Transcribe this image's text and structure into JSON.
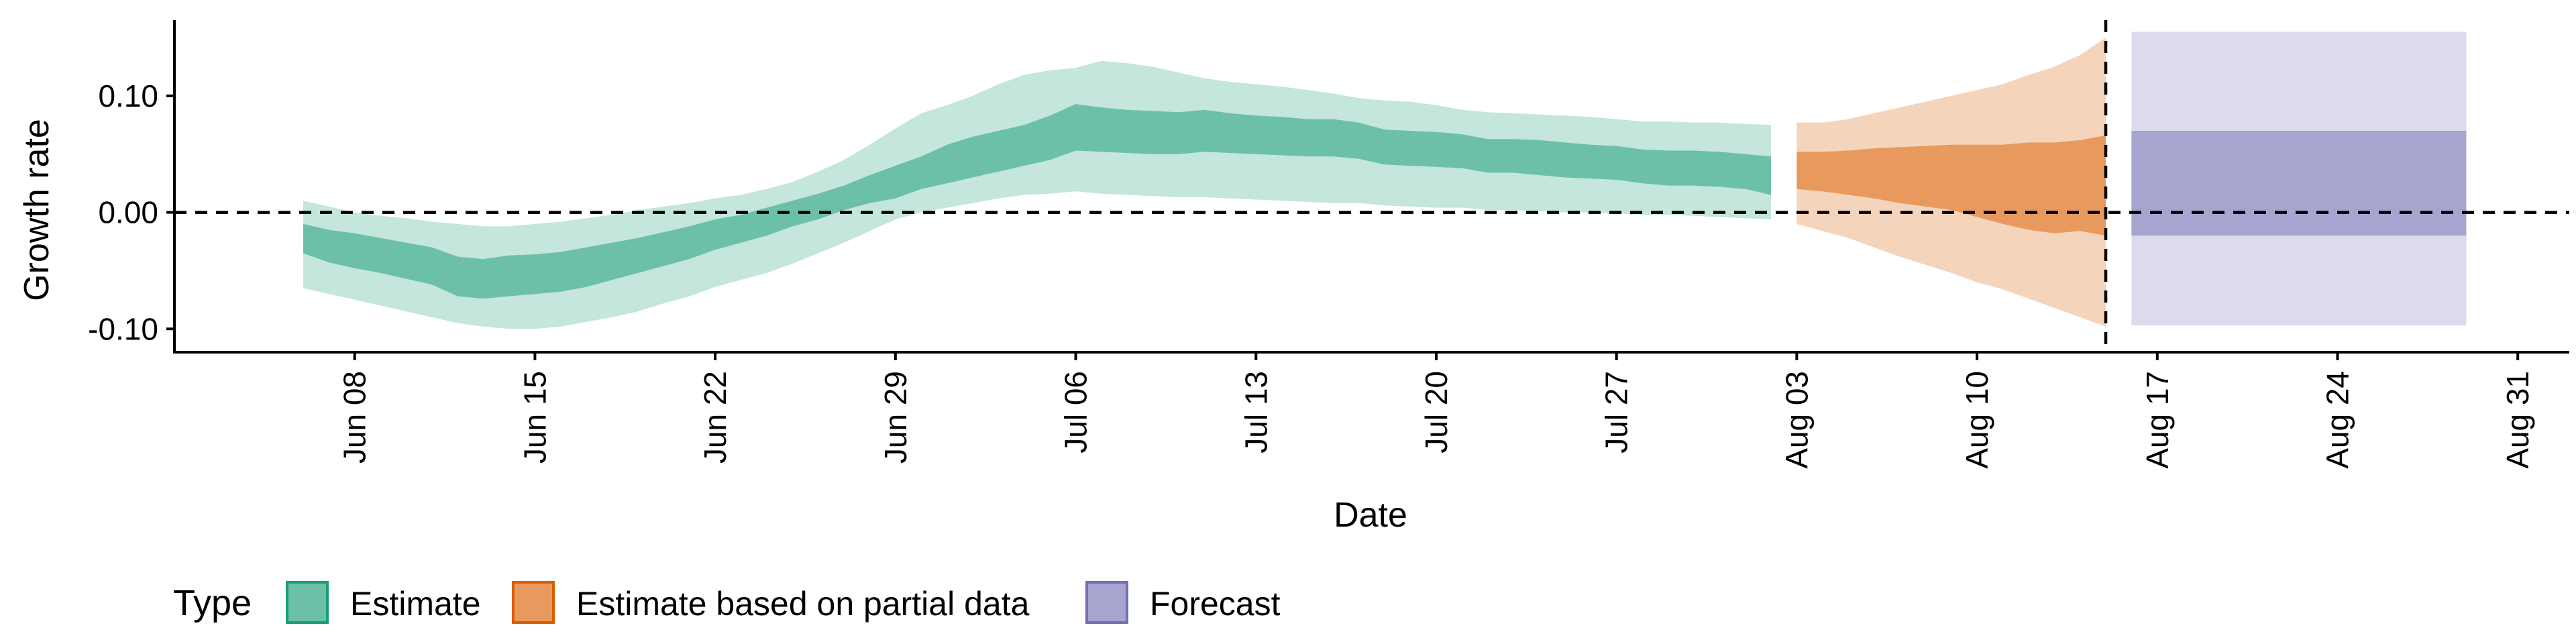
{
  "chart_data": {
    "type": "area",
    "title": "",
    "xlabel": "Date",
    "ylabel": "Growth rate",
    "x_ticks": [
      "Jun 08",
      "Jun 15",
      "Jun 22",
      "Jun 29",
      "Jul 06",
      "Jul 13",
      "Jul 20",
      "Jul 27",
      "Aug 03",
      "Aug 10",
      "Aug 17",
      "Aug 24",
      "Aug 31"
    ],
    "y_ticks": [
      "0.10",
      "0.00",
      "-0.10"
    ],
    "ylim": [
      -0.12,
      0.165
    ],
    "xlim": [
      "2020-06-01",
      "2020-09-02"
    ],
    "grid": false,
    "reference_lines": {
      "horizontal_y": 0,
      "vertical_x": "2020-08-15"
    },
    "legend": {
      "title": "Type",
      "position": "bottom-left",
      "entries": [
        {
          "label": "Estimate",
          "fill": "#6cc0a7",
          "stroke": "#1b9e77"
        },
        {
          "label": "Estimate based on partial data",
          "fill": "#e89a5e",
          "stroke": "#d95f02"
        },
        {
          "label": "Forecast",
          "fill": "#a7a4d0",
          "stroke": "#7570b3"
        }
      ]
    },
    "series": [
      {
        "name": "Estimate",
        "colors": {
          "inner": "#6cc0a7",
          "outer": "#c4e6dc"
        },
        "x": [
          "2020-06-06",
          "2020-06-07",
          "2020-06-08",
          "2020-06-09",
          "2020-06-10",
          "2020-06-11",
          "2020-06-12",
          "2020-06-13",
          "2020-06-14",
          "2020-06-15",
          "2020-06-16",
          "2020-06-17",
          "2020-06-18",
          "2020-06-19",
          "2020-06-20",
          "2020-06-21",
          "2020-06-22",
          "2020-06-23",
          "2020-06-24",
          "2020-06-25",
          "2020-06-26",
          "2020-06-27",
          "2020-06-28",
          "2020-06-29",
          "2020-06-30",
          "2020-07-01",
          "2020-07-02",
          "2020-07-03",
          "2020-07-04",
          "2020-07-05",
          "2020-07-06",
          "2020-07-07",
          "2020-07-08",
          "2020-07-09",
          "2020-07-10",
          "2020-07-11",
          "2020-07-12",
          "2020-07-13",
          "2020-07-14",
          "2020-07-15",
          "2020-07-16",
          "2020-07-17",
          "2020-07-18",
          "2020-07-19",
          "2020-07-20",
          "2020-07-21",
          "2020-07-22",
          "2020-07-23",
          "2020-07-24",
          "2020-07-25",
          "2020-07-26",
          "2020-07-27",
          "2020-07-28",
          "2020-07-29",
          "2020-07-30",
          "2020-07-31",
          "2020-08-01",
          "2020-08-02"
        ],
        "upper90": [
          0.01,
          0.005,
          0.0,
          -0.003,
          -0.005,
          -0.008,
          -0.01,
          -0.012,
          -0.012,
          -0.01,
          -0.008,
          -0.005,
          -0.002,
          0.002,
          0.005,
          0.008,
          0.012,
          0.015,
          0.02,
          0.026,
          0.035,
          0.045,
          0.058,
          0.072,
          0.085,
          0.092,
          0.1,
          0.11,
          0.118,
          0.122,
          0.124,
          0.13,
          0.128,
          0.125,
          0.12,
          0.115,
          0.112,
          0.11,
          0.108,
          0.105,
          0.102,
          0.098,
          0.096,
          0.095,
          0.092,
          0.088,
          0.086,
          0.085,
          0.084,
          0.083,
          0.082,
          0.08,
          0.078,
          0.078,
          0.077,
          0.077,
          0.076,
          0.075
        ],
        "upper50": [
          -0.01,
          -0.015,
          -0.018,
          -0.022,
          -0.026,
          -0.03,
          -0.038,
          -0.04,
          -0.037,
          -0.036,
          -0.034,
          -0.03,
          -0.026,
          -0.022,
          -0.017,
          -0.012,
          -0.006,
          -0.002,
          0.004,
          0.01,
          0.016,
          0.023,
          0.032,
          0.04,
          0.048,
          0.058,
          0.065,
          0.07,
          0.075,
          0.083,
          0.093,
          0.09,
          0.088,
          0.087,
          0.086,
          0.088,
          0.085,
          0.083,
          0.082,
          0.08,
          0.08,
          0.077,
          0.071,
          0.07,
          0.069,
          0.067,
          0.063,
          0.063,
          0.062,
          0.06,
          0.058,
          0.057,
          0.054,
          0.053,
          0.053,
          0.052,
          0.05,
          0.048
        ],
        "lower50": [
          -0.035,
          -0.043,
          -0.048,
          -0.052,
          -0.057,
          -0.062,
          -0.072,
          -0.074,
          -0.072,
          -0.07,
          -0.068,
          -0.064,
          -0.058,
          -0.052,
          -0.046,
          -0.04,
          -0.032,
          -0.026,
          -0.02,
          -0.012,
          -0.006,
          0.002,
          0.008,
          0.012,
          0.02,
          0.025,
          0.03,
          0.035,
          0.04,
          0.045,
          0.053,
          0.052,
          0.051,
          0.05,
          0.05,
          0.052,
          0.051,
          0.05,
          0.049,
          0.048,
          0.048,
          0.046,
          0.041,
          0.04,
          0.039,
          0.038,
          0.034,
          0.034,
          0.032,
          0.03,
          0.029,
          0.028,
          0.025,
          0.023,
          0.023,
          0.022,
          0.02,
          0.015
        ],
        "lower90": [
          -0.065,
          -0.07,
          -0.075,
          -0.08,
          -0.085,
          -0.09,
          -0.095,
          -0.098,
          -0.1,
          -0.1,
          -0.098,
          -0.094,
          -0.09,
          -0.085,
          -0.078,
          -0.072,
          -0.064,
          -0.058,
          -0.052,
          -0.044,
          -0.035,
          -0.026,
          -0.016,
          -0.006,
          0.0,
          0.004,
          0.008,
          0.012,
          0.015,
          0.016,
          0.018,
          0.016,
          0.015,
          0.014,
          0.013,
          0.013,
          0.012,
          0.011,
          0.01,
          0.009,
          0.008,
          0.008,
          0.006,
          0.005,
          0.004,
          0.004,
          0.002,
          0.002,
          0.001,
          0.0,
          0.0,
          -0.001,
          -0.002,
          -0.002,
          -0.003,
          -0.004,
          -0.005,
          -0.006
        ]
      },
      {
        "name": "Estimate based on partial data",
        "colors": {
          "inner": "#e89a5e",
          "outer": "#f5d4bc"
        },
        "x": [
          "2020-08-03",
          "2020-08-04",
          "2020-08-05",
          "2020-08-06",
          "2020-08-07",
          "2020-08-08",
          "2020-08-09",
          "2020-08-10",
          "2020-08-11",
          "2020-08-12",
          "2020-08-13",
          "2020-08-14",
          "2020-08-15"
        ],
        "upper90": [
          0.077,
          0.077,
          0.08,
          0.085,
          0.09,
          0.095,
          0.1,
          0.105,
          0.11,
          0.118,
          0.125,
          0.135,
          0.15
        ],
        "upper50": [
          0.052,
          0.052,
          0.053,
          0.055,
          0.056,
          0.057,
          0.058,
          0.058,
          0.058,
          0.06,
          0.06,
          0.062,
          0.066
        ],
        "lower50": [
          0.02,
          0.018,
          0.015,
          0.012,
          0.008,
          0.005,
          0.002,
          -0.004,
          -0.01,
          -0.015,
          -0.018,
          -0.016,
          -0.02
        ],
        "lower90": [
          -0.01,
          -0.016,
          -0.022,
          -0.03,
          -0.038,
          -0.045,
          -0.052,
          -0.06,
          -0.066,
          -0.074,
          -0.082,
          -0.09,
          -0.098
        ]
      },
      {
        "name": "Forecast",
        "colors": {
          "inner": "#a7a4d0",
          "outer": "#dcdbee"
        },
        "x": [
          "2020-08-16",
          "2020-08-29"
        ],
        "upper90": [
          0.155,
          0.155
        ],
        "upper50": [
          0.07,
          0.07
        ],
        "lower50": [
          -0.02,
          -0.02
        ],
        "lower90": [
          -0.097,
          -0.097
        ]
      }
    ]
  }
}
